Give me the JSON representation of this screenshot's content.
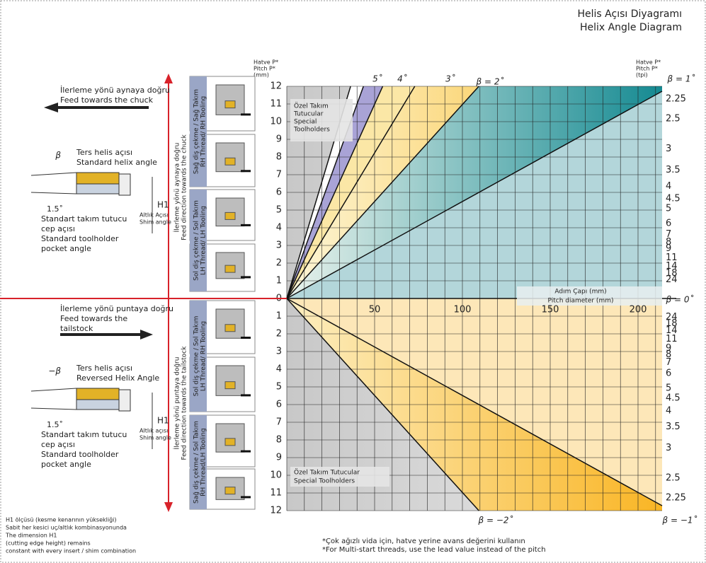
{
  "title": [
    "Helis Açısı Diyagramı",
    "Helix Angle Diagram"
  ],
  "upper": {
    "arrow_text": [
      "İlerleme yönü aynaya doğru",
      "Feed towards the chuck"
    ],
    "helix_label": "β",
    "helix_text": [
      "Ters helis açısı",
      "Standard helix angle"
    ],
    "h1": "H1",
    "angle": "1.5˚",
    "shim": [
      "Altlık Açısı",
      "Shim angle"
    ],
    "pocket": [
      "Standart takım tutucu",
      "cep açısı",
      "Standard toolholder",
      "pocket angle"
    ],
    "feed_vertical": [
      "İlerleme yönü aynaya doğru",
      "Feed direction towards the chuck"
    ],
    "tool_groups": [
      [
        "Sağ diş çekme / Sağ Takım",
        "RH Thread/ RH Tooling"
      ],
      [
        "Sol diş çekme / Sol Takım",
        "LH Thread/ LH Tooling"
      ]
    ]
  },
  "lower": {
    "arrow_text": [
      "İlerleme yönü puntaya doğru",
      "Feed towards the",
      "tailstock"
    ],
    "helix_label": "−β",
    "helix_text": [
      "Ters helis açısı",
      "Reversed Helix Angle"
    ],
    "h1": "H1",
    "angle": "1.5˚",
    "shim": [
      "Altlık açısı",
      "Shim angle"
    ],
    "pocket": [
      "Standart takım tutucu",
      "cep açısı",
      "Standard toolholder",
      "pocket angle"
    ],
    "feed_vertical": [
      "İlerleme yönü puntaya doğru",
      "Feed direction towards the tailstock"
    ],
    "tool_groups": [
      [
        "Sol diş çekme / Sol Takım",
        "LH Thread/ RH Tooling"
      ],
      [
        "Sağ diş çekme / Sol Takım",
        "RH Thread/LH Tooling"
      ]
    ]
  },
  "note_h1": [
    "H1 ölçüsü (kesme kenarının yüksekliği)",
    "Sabit her kesici uç/altlık kombinasyonunda",
    "The dimension H1",
    "(cutting edge height) remains",
    "constant with every insert / shim combination"
  ],
  "diagram": {
    "pitch_label": [
      "Hatve P*",
      "Pitch P*",
      "(mm)"
    ],
    "tpi_label": [
      "Hatve P*",
      "Pitch P*",
      "(tpi)"
    ],
    "pitch_ticks": [
      0,
      1,
      2,
      3,
      4,
      5,
      6,
      7,
      8,
      9,
      10,
      11,
      12
    ],
    "lower_pitch_ticks": [
      1,
      2,
      3,
      4,
      5,
      6,
      7,
      8,
      9,
      10,
      11,
      12
    ],
    "tpi_ticks": [
      2.25,
      2.5,
      3,
      3.5,
      4,
      4.5,
      5,
      6,
      7,
      8,
      9,
      11,
      14,
      18,
      24
    ],
    "lower_tpi_ticks": [
      24,
      18,
      14,
      11,
      9,
      8,
      7,
      6,
      5,
      4.5,
      4,
      3.5,
      3,
      2.5,
      2.25
    ],
    "diameter_ticks": [
      50,
      100,
      150,
      200
    ],
    "diameter_label": [
      "Adım Çapı (mm)",
      "Pitch diameter (mm)"
    ],
    "special_upper": [
      "Özel Takım",
      "Tutucular",
      "Special",
      "Toolholders"
    ],
    "special_lower": [
      "Özel Takım Tutucular",
      "Special Toolholders"
    ],
    "angle_labels": {
      "a5": "5˚",
      "a4": "4˚",
      "a3": "3˚",
      "a2": "β = 2˚",
      "a1": "β = 1˚",
      "a0": "β = 0˚",
      "am2": "β = −2˚",
      "am1": "β = −1˚"
    }
  },
  "footnote": [
    "*Çok ağızlı vida için, hatve yerine avans değerini kullanın",
    "*For Multi-start threads, use the lead value instead of the pitch"
  ]
}
